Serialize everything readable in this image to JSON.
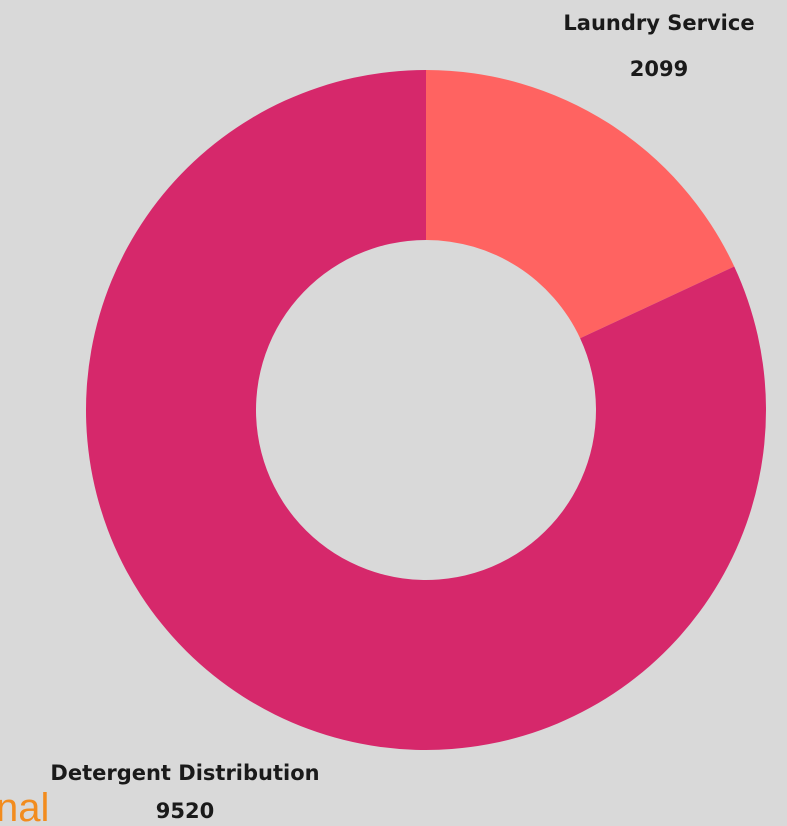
{
  "chart_data": {
    "type": "pie",
    "variant": "donut",
    "title": "",
    "categories": [
      "Laundry Service",
      "Detergent Distribution"
    ],
    "values": [
      2099,
      9520
    ],
    "display_values": [
      "2099",
      "9520"
    ],
    "colors": [
      "#ff6361",
      "#d6286b"
    ],
    "legend": "none",
    "labels_outside": true
  },
  "background_color": "#d9d9d9",
  "watermark_text": "nal"
}
